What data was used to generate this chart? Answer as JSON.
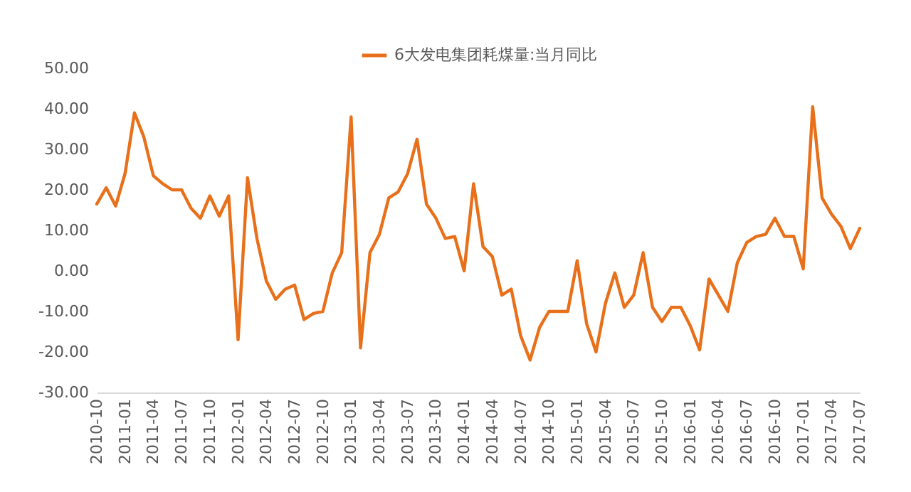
{
  "chart_data": {
    "type": "line",
    "categories": [
      "2010-10",
      null,
      null,
      "2011-01",
      null,
      null,
      "2011-04",
      null,
      null,
      "2011-07",
      null,
      null,
      "2011-10",
      null,
      null,
      "2012-01",
      null,
      null,
      "2012-04",
      null,
      null,
      "2012-07",
      null,
      null,
      "2012-10",
      null,
      null,
      "2013-01",
      null,
      null,
      "2013-04",
      null,
      null,
      "2013-07",
      null,
      null,
      "2013-10",
      null,
      null,
      "2014-01",
      null,
      null,
      "2014-04",
      null,
      null,
      "2014-07",
      null,
      null,
      "2014-10",
      null,
      null,
      "2015-01",
      null,
      null,
      "2015-04",
      null,
      null,
      "2015-07",
      null,
      null,
      "2015-10",
      null,
      null,
      "2016-01",
      null,
      null,
      "2016-04",
      null,
      null,
      "2016-07",
      null,
      null,
      "2016-10",
      null,
      null,
      "2017-01",
      null,
      null,
      "2017-04",
      null,
      null,
      "2017-07"
    ],
    "series": [
      {
        "name": "6大发电集团耗煤量:当月同比",
        "color": "#e8701a",
        "values": [
          16.5,
          20.5,
          16,
          24,
          39,
          33,
          23.5,
          21.5,
          20,
          20,
          15.5,
          13,
          18.5,
          13.5,
          18.5,
          -17,
          23,
          8,
          -2.5,
          -7,
          -4.5,
          -3.5,
          -12,
          -10.5,
          -10,
          -0.5,
          4.5,
          38,
          -19,
          4.5,
          9,
          18,
          19.5,
          24,
          32.5,
          16.5,
          13,
          8,
          8.5,
          0,
          21.5,
          6,
          3.5,
          -6,
          -4.5,
          -16,
          -22,
          -14,
          -10,
          -10,
          -10,
          2.5,
          -13,
          -20,
          -8,
          -0.5,
          -9,
          -6,
          4.5,
          -9,
          -12.5,
          -9,
          -9,
          -13.5,
          -19.5,
          -2,
          -6,
          -10,
          2,
          7,
          8.5,
          9,
          13,
          8.5,
          8.5,
          0.5,
          40.5,
          18,
          14,
          11,
          5.5,
          10.5
        ]
      }
    ],
    "ylim": [
      -30,
      50
    ],
    "yticks": [
      {
        "value": -30,
        "label": "-30.00"
      },
      {
        "value": -20,
        "label": "-20.00"
      },
      {
        "value": -10,
        "label": "-10.00"
      },
      {
        "value": 0,
        "label": "0.00"
      },
      {
        "value": 10,
        "label": "10.00"
      },
      {
        "value": 20,
        "label": "20.00"
      },
      {
        "value": 30,
        "label": "30.00"
      },
      {
        "value": 40,
        "label": "40.00"
      },
      {
        "value": 50,
        "label": "50.00"
      }
    ],
    "grid": false,
    "legend": "top",
    "marker": "none",
    "line_style": "solid"
  }
}
